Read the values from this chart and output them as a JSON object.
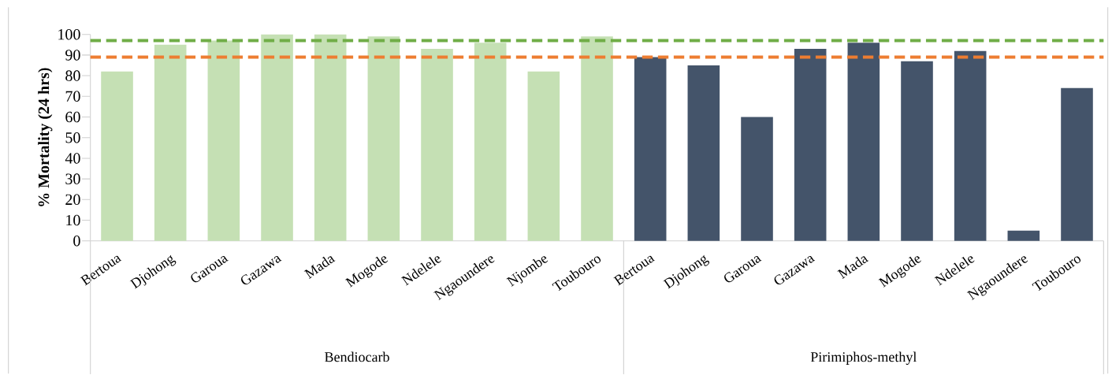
{
  "chart_data": {
    "type": "bar",
    "ylabel": "% Mortality (24 hrs)",
    "categories": [
      "Bertoua",
      "Djohong",
      "Garoua",
      "Gazawa",
      "Mada",
      "Mogode",
      "Ndelele",
      "Ngaoundere",
      "Njombe",
      "Toubouro",
      "Bertoua",
      "Djohong",
      "Garoua",
      "Gazawa",
      "Mada",
      "Mogode",
      "Ndelele",
      "Ngaoundere",
      "Toubouro"
    ],
    "series": [
      {
        "color": "#c5e0b4",
        "values": [
          82,
          95,
          97,
          100,
          100,
          99,
          93,
          96,
          82,
          99,
          null,
          null,
          null,
          null,
          null,
          null,
          null,
          null,
          null
        ]
      },
      {
        "color": "#44546a",
        "values": [
          null,
          null,
          null,
          null,
          null,
          null,
          null,
          null,
          null,
          null,
          89,
          85,
          60,
          93,
          96,
          87,
          92,
          5,
          74
        ]
      }
    ],
    "ylim": [
      0,
      100
    ],
    "yticks": [
      0,
      10,
      20,
      30,
      40,
      50,
      60,
      70,
      80,
      90,
      100
    ],
    "ref_lines": [
      {
        "axis": "y",
        "value": 97,
        "color": "#70ad47",
        "line_style": "dashed"
      },
      {
        "axis": "y",
        "value": 89,
        "color": "#ed7d31",
        "line_style": "dashed"
      }
    ],
    "annotations": [
      "Bendiocarb",
      "Pirimiphos-methyl"
    ]
  }
}
